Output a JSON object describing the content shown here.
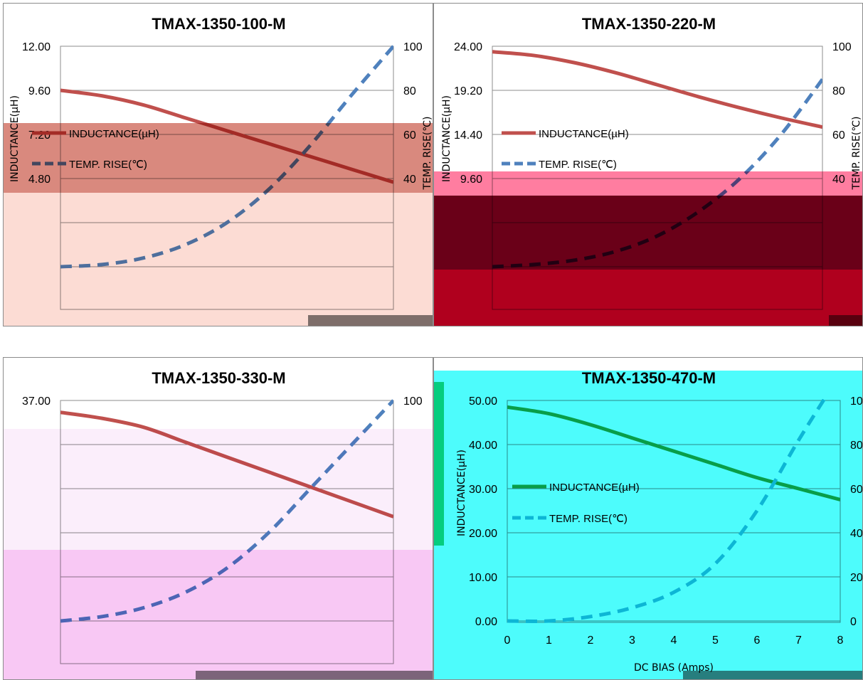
{
  "colors": {
    "inductance_red": "#c0504d",
    "temp_blue": "#4f81bd",
    "inductance_green": "#1aa04a",
    "temp_cyan": "#2ab8d8",
    "band_red": "#d9897e",
    "band_peach": "#fcdcd4",
    "band_pink": "#ff7da0",
    "band_maroon": "#6a0018",
    "band_crimson": "#b0001e",
    "band_lavender": "#fbeefb",
    "band_pink2": "#f8c8f4",
    "band_cyan": "#4dfcfc"
  },
  "chart_data": [
    {
      "type": "line",
      "title": "TMAX-1350-100-M",
      "x": [
        0,
        1,
        2,
        3,
        4,
        5,
        6,
        7,
        8
      ],
      "ylim_left": [
        0,
        12
      ],
      "ylim_right": [
        0,
        100
      ],
      "left_ticks": [
        "12.00",
        "9.60",
        "7.20",
        "4.80"
      ],
      "right_ticks": [
        "100",
        "80",
        "60",
        "40"
      ],
      "ylabel_left": "INDUCTANCE(µH)",
      "ylabel_right": "TEMP. RISE(℃)",
      "series": [
        {
          "name": "INDUCTANCE(µH)",
          "axis": "left",
          "values": [
            9.6,
            9.3,
            8.8,
            8.1,
            7.4,
            6.7,
            6.0,
            5.3,
            4.6
          ]
        },
        {
          "name": "TEMP. RISE(℃)",
          "axis": "right",
          "values": [
            0,
            1,
            4,
            10,
            20,
            35,
            55,
            78,
            100
          ]
        }
      ]
    },
    {
      "type": "line",
      "title": "TMAX-1350-220-M",
      "x": [
        0,
        1,
        2,
        3,
        4,
        5,
        6,
        7,
        8
      ],
      "ylim_left": [
        0,
        24
      ],
      "ylim_right": [
        0,
        100
      ],
      "left_ticks": [
        "24.00",
        "19.20",
        "14.40",
        "9.60"
      ],
      "right_ticks": [
        "100",
        "80",
        "60",
        "40"
      ],
      "ylabel_left": "INDUCTANCE(µH)",
      "ylabel_right": "TEMP. RISE(℃)",
      "series": [
        {
          "name": "INDUCTANCE(µH)",
          "axis": "left",
          "values": [
            23.4,
            23.0,
            22.2,
            21.1,
            19.8,
            18.5,
            17.3,
            16.2,
            15.2
          ]
        },
        {
          "name": "TEMP. RISE(℃)",
          "axis": "right",
          "values": [
            0,
            1,
            3,
            7,
            14,
            25,
            40,
            60,
            85
          ]
        }
      ]
    },
    {
      "type": "line",
      "title": "TMAX-1350-330-M",
      "x": [
        0,
        1,
        2,
        3,
        4,
        5,
        6,
        7,
        8
      ],
      "ylim_left": [
        0,
        37
      ],
      "ylim_right": [
        0,
        100
      ],
      "left_ticks": [
        "37.00"
      ],
      "right_ticks": [
        "100"
      ],
      "series": [
        {
          "name": "INDUCTANCE(µH)",
          "axis": "left",
          "values": [
            35.0,
            34.0,
            32.5,
            30.0,
            27.5,
            25.0,
            22.5,
            20.0,
            17.5
          ]
        },
        {
          "name": "TEMP. RISE(℃)",
          "axis": "right",
          "values": [
            0,
            2,
            6,
            13,
            24,
            40,
            60,
            80,
            100
          ]
        }
      ]
    },
    {
      "type": "line",
      "title": "TMAX-1350-470-M",
      "x": [
        0,
        1,
        2,
        3,
        4,
        5,
        6,
        7,
        8
      ],
      "xlabel": "DC BIAS  (Amps)",
      "x_ticks": [
        "0",
        "1",
        "2",
        "3",
        "4",
        "5",
        "6",
        "7",
        "8"
      ],
      "ylim_left": [
        0,
        50
      ],
      "ylim_right": [
        0,
        100
      ],
      "left_ticks": [
        "50.00",
        "40.00",
        "30.00",
        "20.00",
        "10.00",
        "0.00"
      ],
      "right_ticks": [
        "100",
        "80",
        "60",
        "40",
        "20",
        "0"
      ],
      "ylabel_left": "INDUCTANCE(µH)",
      "ylabel_right": "TEMP. RISE(℃)",
      "series": [
        {
          "name": "INDUCTANCE(µH)",
          "axis": "left",
          "values": [
            48.5,
            47.0,
            44.5,
            41.5,
            38.5,
            35.5,
            32.5,
            30.0,
            27.5
          ]
        },
        {
          "name": "TEMP. RISE(℃)",
          "axis": "right",
          "values": [
            0,
            0,
            2,
            6,
            13,
            26,
            50,
            82,
            112
          ]
        }
      ]
    }
  ]
}
